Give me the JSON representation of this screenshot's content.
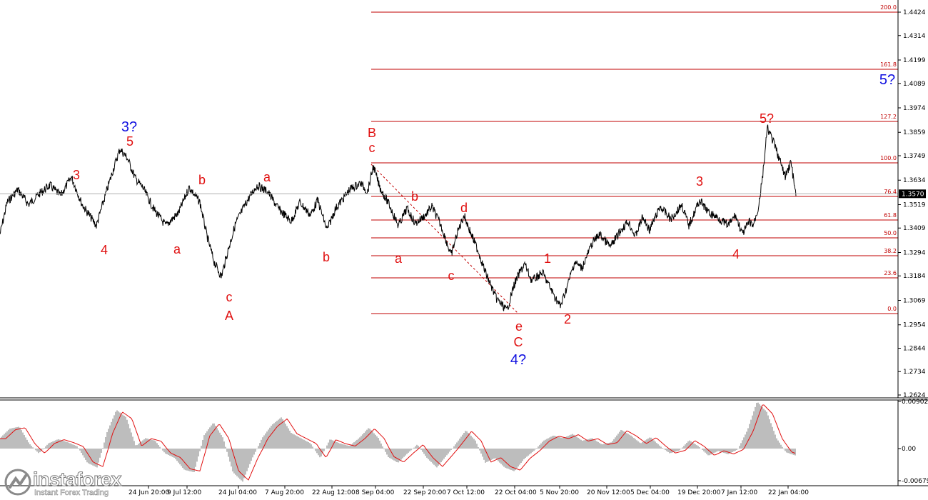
{
  "chart_data": [
    {
      "type": "line",
      "title": "",
      "price_axis_ticks": [
        "1.4424",
        "1.4314",
        "1.4199",
        "1.4089",
        "1.3974",
        "1.3859",
        "1.3749",
        "1.3634",
        "1.3519",
        "1.3409",
        "1.3294",
        "1.3184",
        "1.3069",
        "1.2954",
        "1.2844",
        "1.2734",
        "1.2624"
      ],
      "time_axis_ticks": [
        "24 Jun 20:00",
        "9 Jul 12:00",
        "24 Jul 04:00",
        "7 Aug 20:00",
        "22 Aug 12:00",
        "8 Sep 04:00",
        "22 Sep 20:00",
        "7 Oct 12:00",
        "22 Oct 04:00",
        "5 Nov 20:00",
        "20 Nov 12:00",
        "5 Dec 04:00",
        "19 Dec 20:00",
        "7 Jan 12:00",
        "22 Jan 04:00"
      ],
      "current_price": "1.3570",
      "ylim": [
        1.2624,
        1.4424
      ],
      "series": [
        {
          "points": [
            [
              "s",
              1.338
            ],
            [
              "s",
              1.353
            ],
            [
              "s",
              1.359
            ],
            [
              "s",
              1.352
            ],
            [
              "s",
              1.357
            ],
            [
              "s",
              1.361
            ],
            [
              "s",
              1.356
            ],
            [
              "s",
              1.365
            ],
            [
              "s",
              1.352
            ],
            [
              "s",
              1.342
            ],
            [
              "s",
              1.359
            ],
            [
              "s",
              1.372
            ],
            [
              "s",
              1.378
            ],
            [
              "s",
              1.374
            ],
            [
              "s",
              1.364
            ],
            [
              "s",
              1.36
            ],
            [
              "s",
              1.35
            ],
            [
              "s",
              1.342
            ],
            [
              "s",
              1.348
            ],
            [
              "s",
              1.36
            ],
            [
              "s",
              1.353
            ],
            [
              "s",
              1.337
            ],
            [
              "s",
              1.325
            ],
            [
              "s",
              1.318
            ],
            [
              "s",
              1.331
            ],
            [
              "s",
              1.343
            ],
            [
              "s",
              1.353
            ],
            [
              "s",
              1.361
            ],
            [
              "s",
              1.358
            ],
            [
              "s",
              1.35
            ],
            [
              "s",
              1.344
            ],
            [
              "s",
              1.353
            ],
            [
              "s",
              1.347
            ],
            [
              "s",
              1.354
            ],
            [
              "s",
              1.34
            ],
            [
              "s",
              1.35
            ],
            [
              "s",
              1.359
            ],
            [
              "s",
              1.362
            ],
            [
              "s",
              1.358
            ],
            [
              "s",
              1.37
            ],
            [
              "s",
              1.36
            ],
            [
              "s",
              1.352
            ],
            [
              "s",
              1.342
            ],
            [
              "s",
              1.35
            ],
            [
              "s",
              1.343
            ],
            [
              "s",
              1.347
            ],
            [
              "s",
              1.351
            ],
            [
              "s",
              1.344
            ],
            [
              "s",
              1.34
            ],
            [
              "s",
              1.328
            ],
            [
              "s",
              1.338
            ],
            [
              "s",
              1.347
            ],
            [
              "s",
              1.338
            ],
            [
              "s",
              1.33
            ],
            [
              "s",
              1.32
            ],
            [
              "s",
              1.308
            ],
            [
              "s",
              1.302
            ],
            [
              "s",
              1.314
            ],
            [
              "s",
              1.32
            ],
            [
              "s",
              1.324
            ],
            [
              "s",
              1.316
            ],
            [
              "s",
              1.32
            ],
            [
              "s",
              1.31
            ],
            [
              "s",
              1.304
            ],
            [
              "s",
              1.314
            ],
            [
              "s",
              1.325
            ],
            [
              "s",
              1.322
            ],
            [
              "s",
              1.334
            ],
            [
              "s",
              1.338
            ],
            [
              "s",
              1.332
            ],
            [
              "s",
              1.34
            ],
            [
              "s",
              1.344
            ],
            [
              "s",
              1.337
            ],
            [
              "s",
              1.346
            ],
            [
              "s",
              1.34
            ],
            [
              "s",
              1.351
            ],
            [
              "s",
              1.345
            ],
            [
              "s",
              1.352
            ],
            [
              "s",
              1.342
            ],
            [
              "s",
              1.354
            ],
            [
              "s",
              1.348
            ],
            [
              "s",
              1.346
            ],
            [
              "s",
              1.342
            ],
            [
              "s",
              1.347
            ],
            [
              "s",
              1.338
            ],
            [
              "s",
              1.344
            ],
            [
              "s",
              1.342
            ],
            [
              "s",
              1.35
            ],
            [
              "s",
              1.364
            ],
            [
              "s",
              1.388
            ],
            [
              "s",
              1.38
            ],
            [
              "s",
              1.37
            ],
            [
              "s",
              1.365
            ],
            [
              "s",
              1.372
            ],
            [
              "s",
              1.356
            ]
          ]
        }
      ],
      "fibonacci_levels": [
        {
          "label": "200.0",
          "price": 1.445
        },
        {
          "label": "161.8",
          "price": 1.4162
        },
        {
          "label": "127.2",
          "price": 1.39
        },
        {
          "label": "100.0",
          "price": 1.3712
        },
        {
          "label": "76.4",
          "price": 1.3548
        },
        {
          "label": "61.8",
          "price": 1.3445
        },
        {
          "label": "50.0",
          "price": 1.3366
        },
        {
          "label": "38.2",
          "price": 1.3283
        },
        {
          "label": "23.6",
          "price": 1.3181
        },
        {
          "label": "0.0",
          "price": 1.3005
        }
      ],
      "wave_labels": [
        {
          "text": "3?",
          "color": "blue"
        },
        {
          "text": "5",
          "color": "red"
        },
        {
          "text": "3",
          "color": "red"
        },
        {
          "text": "4",
          "color": "red"
        },
        {
          "text": "b",
          "color": "red"
        },
        {
          "text": "a",
          "color": "red"
        },
        {
          "text": "c",
          "color": "red"
        },
        {
          "text": "A",
          "color": "red"
        },
        {
          "text": "a",
          "color": "red"
        },
        {
          "text": "b",
          "color": "red"
        },
        {
          "text": "B",
          "color": "red"
        },
        {
          "text": "c",
          "color": "red"
        },
        {
          "text": "b",
          "color": "red"
        },
        {
          "text": "a",
          "color": "red"
        },
        {
          "text": "d",
          "color": "red"
        },
        {
          "text": "c",
          "color": "red"
        },
        {
          "text": "e",
          "color": "red"
        },
        {
          "text": "C",
          "color": "red"
        },
        {
          "text": "4?",
          "color": "blue"
        },
        {
          "text": "1",
          "color": "red"
        },
        {
          "text": "2",
          "color": "red"
        },
        {
          "text": "3",
          "color": "red"
        },
        {
          "text": "4",
          "color": "red"
        },
        {
          "text": "5?",
          "color": "red"
        },
        {
          "text": "5?",
          "color": "blue"
        }
      ]
    },
    {
      "type": "area",
      "title": "",
      "axis_ticks": [
        "0.00902",
        "0.00",
        "-0.00679"
      ],
      "ylim": [
        -0.00679,
        0.00902
      ],
      "histogram_values": [
        0.002,
        0.0038,
        0.0042,
        0.001,
        -0.001,
        0.001,
        0.0018,
        0.0012,
        0.0004,
        -0.003,
        -0.004,
        0.003,
        0.0074,
        0.006,
        0.0005,
        0.002,
        0.0015,
        -0.001,
        -0.002,
        -0.0045,
        -0.005,
        0.0025,
        0.005,
        0.002,
        -0.005,
        -0.007,
        -0.002,
        0.002,
        0.0045,
        0.006,
        0.003,
        0.002,
        0.001,
        -0.002,
        0.0018,
        0.001,
        0.0005,
        0.002,
        0.004,
        0.002,
        -0.0018,
        -0.003,
        -0.001,
        0.0008,
        -0.002,
        -0.004,
        -0.0015,
        0.001,
        0.0035,
        0.0015,
        -0.003,
        -0.002,
        -0.004,
        -0.0048,
        -0.0022,
        -0.0005,
        0.0015,
        0.0025,
        0.002,
        0.0028,
        0.0015,
        0.002,
        0.0008,
        0.0012,
        0.0036,
        0.0025,
        0.001,
        0.0022,
        0.0005,
        -0.001,
        -0.0004,
        0.0016,
        0.0004,
        -0.0015,
        -0.0005,
        -0.0012,
        -0.0002,
        0.0035,
        0.009,
        0.007,
        0.002,
        -0.0008,
        -0.0015
      ]
    }
  ],
  "brand": {
    "name": "instaforex",
    "tagline": "Instant Forex Trading"
  }
}
